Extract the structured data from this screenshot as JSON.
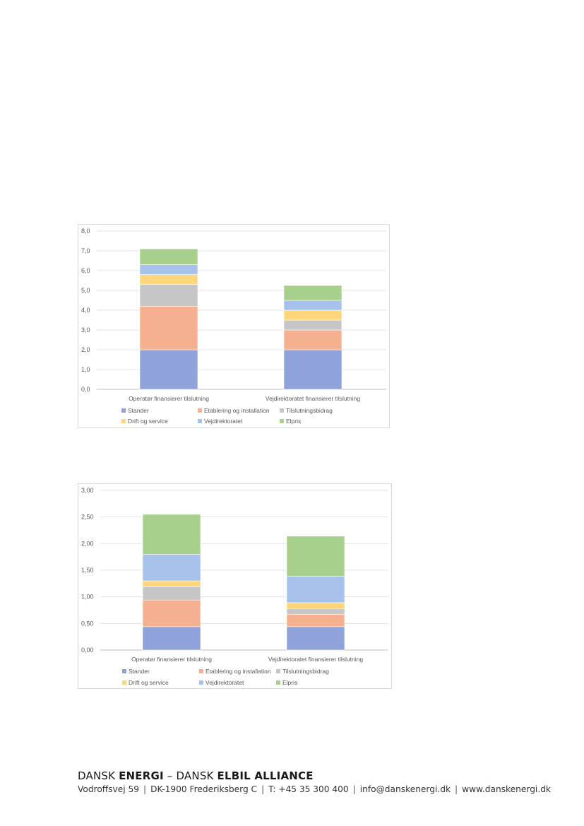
{
  "chart_data": [
    {
      "type": "bar",
      "stacked": true,
      "categories": [
        "Operatør finansierer tilslutning",
        "Vejdirektoratet finansierer tilslutning"
      ],
      "series": [
        {
          "name": "Stander",
          "color": "#8fa2d9",
          "values": [
            2.0,
            2.0
          ]
        },
        {
          "name": "Etablering og installation",
          "color": "#f4b08f",
          "values": [
            2.2,
            1.0
          ]
        },
        {
          "name": "Tilslutningsbidrag",
          "color": "#c6c6c6",
          "values": [
            1.1,
            0.5
          ]
        },
        {
          "name": "Drift og service",
          "color": "#ffd679",
          "values": [
            0.5,
            0.5
          ]
        },
        {
          "name": "Vejdirektoratet",
          "color": "#a6c2ea",
          "values": [
            0.5,
            0.5
          ]
        },
        {
          "name": "Elpris",
          "color": "#a8d08d",
          "values": [
            0.8,
            0.75
          ]
        }
      ],
      "ylim": [
        0,
        8
      ],
      "yticks": [
        "0,0",
        "1,0",
        "2,0",
        "3,0",
        "4,0",
        "5,0",
        "6,0",
        "7,0",
        "8,0"
      ],
      "ystep": 1,
      "grid": true,
      "legend_position": "bottom"
    },
    {
      "type": "bar",
      "stacked": true,
      "categories": [
        "Operatør finansierer tilslutning",
        "Vejdirektoratet finansierer tilslutning"
      ],
      "series": [
        {
          "name": "Stander",
          "color": "#8fa2d9",
          "values": [
            0.44,
            0.44
          ]
        },
        {
          "name": "Etablering og installation",
          "color": "#f4b08f",
          "values": [
            0.5,
            0.23
          ]
        },
        {
          "name": "Tilslutningsbidrag",
          "color": "#c6c6c6",
          "values": [
            0.25,
            0.11
          ]
        },
        {
          "name": "Drift og service",
          "color": "#ffd679",
          "values": [
            0.11,
            0.11
          ]
        },
        {
          "name": "Vejdirektoratet",
          "color": "#a6c2ea",
          "values": [
            0.5,
            0.5
          ]
        },
        {
          "name": "Elpris",
          "color": "#a8d08d",
          "values": [
            0.75,
            0.75
          ]
        }
      ],
      "ylim": [
        0,
        3
      ],
      "yticks": [
        "0,00",
        "0,50",
        "1,00",
        "1,50",
        "2,00",
        "2,50",
        "3,00"
      ],
      "ystep": 0.5,
      "grid": true,
      "legend_position": "bottom"
    }
  ],
  "footer": {
    "title_thin_1": "DANSK ",
    "title_bold_1": "ENERGI",
    "title_thin_2": " – DANSK ",
    "title_bold_2": "ELBIL ALLIANCE",
    "address": "Vodroffsvej 59",
    "city": "DK-1900 Frederiksberg C",
    "phone": "T: +45 35 300 400",
    "email": "info@danskenergi.dk",
    "web": "www.danskenergi.dk"
  }
}
